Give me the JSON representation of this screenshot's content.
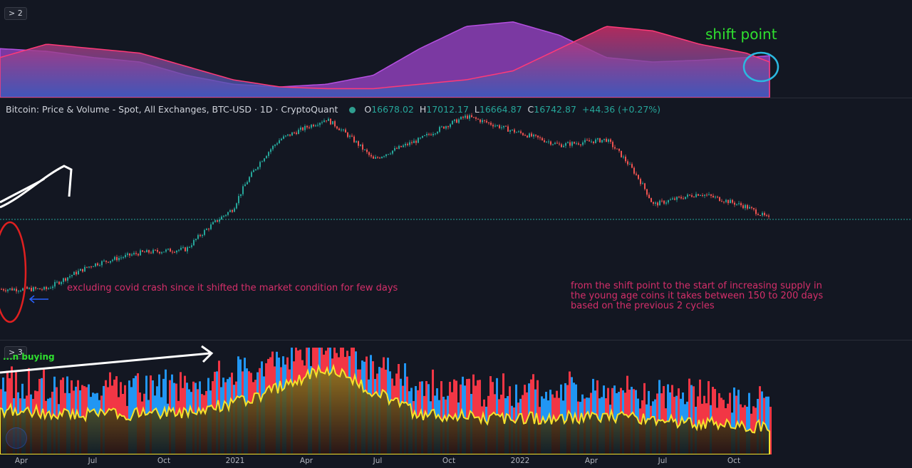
{
  "panes": {
    "top_badge": "> 2",
    "bottom_badge": "> 3"
  },
  "legend": {
    "title": "Bitcoin: Price & Volume - Spot, All Exchanges, BTC-USD · 1D · CryptoQuant",
    "o_label": "O",
    "o_value": "16678.02",
    "h_label": "H",
    "h_value": "17012.17",
    "l_label": "L",
    "l_value": "16664.87",
    "c_label": "C",
    "c_value": "16742.87",
    "change": "+44.36 (+0.27%)"
  },
  "annotations": {
    "shift_point": "shift point",
    "covid": "excluding covid crash since it shifted the market condition for few days",
    "cycles_line1": "from the shift point to the start of increasing supply in",
    "cycles_line2": "the young age coins it takes between 150 to 200 days",
    "cycles_line3": "based on the previous 2 cycles",
    "buying": "...n buying"
  },
  "colors": {
    "background": "#131722",
    "band_a": "#9b3fc9",
    "band_b": "#d62f6a",
    "candle_up": "#26a69a",
    "candle_down": "#ef5350",
    "osc_red": "#f23645",
    "osc_blue": "#2196f3",
    "osc_yellow": "#f5e12b",
    "annotation": "#d62f6a",
    "shift_text": "#2fe02f"
  },
  "chart_data": [
    {
      "type": "line",
      "title": "Bitcoin: Price & Volume - Spot, All Exchanges, BTC-USD",
      "x": [
        "2020-04",
        "2020-06",
        "2020-08",
        "2020-10",
        "2020-12",
        "2021-02",
        "2021-04",
        "2021-06",
        "2021-08",
        "2021-10",
        "2021-12",
        "2022-02",
        "2022-04",
        "2022-06",
        "2022-08",
        "2022-10",
        "2022-11"
      ],
      "series": [
        {
          "values": [
            7000,
            9500,
            11000,
            11500,
            19000,
            45000,
            58000,
            35000,
            45000,
            60000,
            50000,
            42000,
            45000,
            20000,
            23000,
            19500,
            16700
          ]
        }
      ],
      "last_close": 16742.87,
      "xticks": [
        "Apr",
        "Jul",
        "Oct",
        "2021",
        "Apr",
        "Jul",
        "Oct",
        "2022",
        "Apr",
        "Jul",
        "Oct"
      ]
    },
    {
      "type": "area",
      "title": "",
      "x": [
        "2020-02",
        "2020-04",
        "2020-06",
        "2020-08",
        "2020-10",
        "2020-12",
        "2021-02",
        "2021-04",
        "2021-06",
        "2021-08",
        "2021-10",
        "2021-12",
        "2022-02",
        "2022-04",
        "2022-06",
        "2022-08",
        "2022-10",
        "2022-11"
      ],
      "series": [
        {
          "values": [
            0.55,
            0.52,
            0.45,
            0.4,
            0.25,
            0.15,
            0.12,
            0.15,
            0.25,
            0.55,
            0.8,
            0.85,
            0.7,
            0.45,
            0.4,
            0.42,
            0.45,
            0.47
          ]
        },
        {
          "values": [
            0.45,
            0.6,
            0.55,
            0.5,
            0.35,
            0.2,
            0.12,
            0.1,
            0.1,
            0.15,
            0.2,
            0.3,
            0.55,
            0.8,
            0.75,
            0.6,
            0.5,
            0.4
          ]
        }
      ]
    },
    {
      "type": "area",
      "title": "",
      "x": [
        "2020-02",
        "2020-06",
        "2020-10",
        "2021-01",
        "2021-04",
        "2021-08",
        "2021-12",
        "2022-04",
        "2022-08",
        "2022-11"
      ],
      "series": [
        {
          "values": [
            0.35,
            0.3,
            0.32,
            0.5,
            0.85,
            0.3,
            0.25,
            0.28,
            0.2,
            0.15
          ]
        }
      ]
    }
  ]
}
